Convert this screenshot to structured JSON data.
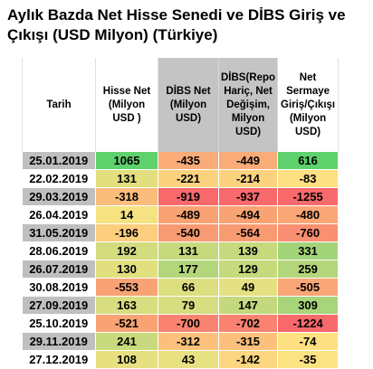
{
  "title": "Aylık Bazda Net Hisse Senedi ve DİBS Giriş ve Çıkışı (USD Milyon) (Türkiye)",
  "headers": [
    "Tarih",
    "Hisse Net (Milyon USD )",
    "DİBS Net (Milyon USD)",
    "DİBS(Repo Hariç, Net Değişim, Milyon USD)",
    "Net Sermaye Giriş/Çıkışı (Milyon USD)"
  ],
  "rows": [
    {
      "date": "25.01.2019",
      "cells": [
        {
          "v": "1065",
          "c": "#5ed16c"
        },
        {
          "v": "-435",
          "c": "#f9ac77"
        },
        {
          "v": "-449",
          "c": "#f9ac77"
        },
        {
          "v": "616",
          "c": "#5ed16c"
        }
      ]
    },
    {
      "date": "22.02.2019",
      "cells": [
        {
          "v": "131",
          "c": "#e2df7f"
        },
        {
          "v": "-221",
          "c": "#fbd37f"
        },
        {
          "v": "-214",
          "c": "#fbd37f"
        },
        {
          "v": "-83",
          "c": "#fde081"
        }
      ]
    },
    {
      "date": "29.03.2019",
      "cells": [
        {
          "v": "-318",
          "c": "#fbbd7b"
        },
        {
          "v": "-919",
          "c": "#f8696b"
        },
        {
          "v": "-937",
          "c": "#f8696b"
        },
        {
          "v": "-1255",
          "c": "#f8696b"
        }
      ]
    },
    {
      "date": "26.04.2019",
      "cells": [
        {
          "v": "14",
          "c": "#f5e383"
        },
        {
          "v": "-489",
          "c": "#f9a374"
        },
        {
          "v": "-494",
          "c": "#f9a374"
        },
        {
          "v": "-480",
          "c": "#faa676"
        }
      ]
    },
    {
      "date": "31.05.2019",
      "cells": [
        {
          "v": "-196",
          "c": "#fcce7e"
        },
        {
          "v": "-540",
          "c": "#f99b72"
        },
        {
          "v": "-564",
          "c": "#f99b72"
        },
        {
          "v": "-760",
          "c": "#f99071"
        }
      ]
    },
    {
      "date": "28.06.2019",
      "cells": [
        {
          "v": "192",
          "c": "#d3dc7e"
        },
        {
          "v": "131",
          "c": "#c6d97d"
        },
        {
          "v": "139",
          "c": "#c6d97d"
        },
        {
          "v": "331",
          "c": "#a4d479"
        }
      ]
    },
    {
      "date": "26.07.2019",
      "cells": [
        {
          "v": "130",
          "c": "#e2df7f"
        },
        {
          "v": "177",
          "c": "#b4d67b"
        },
        {
          "v": "129",
          "c": "#c6d97d"
        },
        {
          "v": "259",
          "c": "#b4d67b"
        }
      ]
    },
    {
      "date": "30.08.2019",
      "cells": [
        {
          "v": "-553",
          "c": "#f9a374"
        },
        {
          "v": "66",
          "c": "#dcde80"
        },
        {
          "v": "49",
          "c": "#e5e081"
        },
        {
          "v": "-505",
          "c": "#faa676"
        }
      ]
    },
    {
      "date": "27.09.2019",
      "cells": [
        {
          "v": "163",
          "c": "#d8dd7f"
        },
        {
          "v": "79",
          "c": "#d6dd7f"
        },
        {
          "v": "147",
          "c": "#c4d97d"
        },
        {
          "v": "309",
          "c": "#a8d47a"
        }
      ]
    },
    {
      "date": "25.10.2019",
      "cells": [
        {
          "v": "-521",
          "c": "#f9a374"
        },
        {
          "v": "-700",
          "c": "#f98370"
        },
        {
          "v": "-702",
          "c": "#f98370"
        },
        {
          "v": "-1224",
          "c": "#f8696b"
        }
      ]
    },
    {
      "date": "29.11.2019",
      "cells": [
        {
          "v": "241",
          "c": "#c8da7d"
        },
        {
          "v": "-312",
          "c": "#fbc17c"
        },
        {
          "v": "-315",
          "c": "#fbc17c"
        },
        {
          "v": "-74",
          "c": "#fde081"
        }
      ]
    },
    {
      "date": "27.12.2019",
      "cells": [
        {
          "v": "108",
          "c": "#e6e081"
        },
        {
          "v": "43",
          "c": "#e8e182"
        },
        {
          "v": "-142",
          "c": "#fcd680"
        },
        {
          "v": "-35",
          "c": "#fbe383"
        }
      ]
    }
  ]
}
